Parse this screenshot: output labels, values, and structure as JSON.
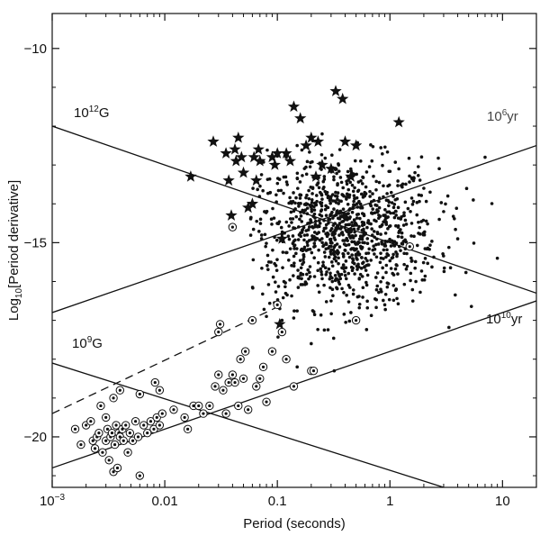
{
  "chart_data": {
    "type": "scatter",
    "x_scale": "log",
    "xlim": [
      0.001,
      20
    ],
    "ylim": [
      -21.3,
      -9.1
    ],
    "xlabel": "Period (seconds)",
    "ylabel_parts": {
      "pre": "Log",
      "sub": "10",
      "post": "[Period derivative]"
    },
    "x_ticks": [
      {
        "value": 0.001,
        "base": "10",
        "exp": "−3"
      },
      {
        "value": 0.01,
        "text": "0.01"
      },
      {
        "value": 0.1,
        "text": "0.1"
      },
      {
        "value": 1,
        "text": "1"
      },
      {
        "value": 10,
        "text": "10"
      }
    ],
    "y_ticks": [
      {
        "value": -10,
        "text": "−10"
      },
      {
        "value": -15,
        "text": "−15"
      },
      {
        "value": -20,
        "text": "−20"
      }
    ],
    "reference_lines": [
      {
        "id": "b12",
        "base": "10",
        "exp": "12",
        "unit": "G",
        "style": "solid",
        "points": [
          [
            0.001,
            -12.0
          ],
          [
            20,
            -16.3
          ]
        ]
      },
      {
        "id": "b9",
        "base": "10",
        "exp": "9",
        "unit": "G",
        "style": "solid",
        "points": [
          [
            0.001,
            -18.1
          ],
          [
            3,
            -21.3
          ]
        ]
      },
      {
        "id": "t6",
        "base": "10",
        "exp": "6",
        "unit": "yr",
        "style": "solid",
        "points": [
          [
            0.001,
            -16.8
          ],
          [
            20,
            -12.5
          ]
        ]
      },
      {
        "id": "t10",
        "base": "10",
        "exp": "10",
        "unit": "yr",
        "style": "solid",
        "points": [
          [
            0.001,
            -20.8
          ],
          [
            20,
            -16.5
          ]
        ]
      },
      {
        "id": "spinup",
        "style": "dashed",
        "points": [
          [
            0.001,
            -19.4
          ],
          [
            0.11,
            -16.6
          ]
        ]
      }
    ],
    "series": [
      {
        "kind": "normal pulsars",
        "marker": "dot",
        "cluster": {
          "count": 1100,
          "center_logx": -0.42,
          "spread_logx": 0.42,
          "center_y": -14.75,
          "spread_y": 0.95,
          "logx_min": -1.25,
          "logx_max": 1.2,
          "y_min": -17.5,
          "y_max": -12.3
        },
        "points": [
          [
            0.12,
            -12.8
          ],
          [
            0.15,
            -12.5
          ],
          [
            0.25,
            -12.2
          ],
          [
            0.35,
            -13.0
          ],
          [
            0.55,
            -12.9
          ],
          [
            1.2,
            -13.1
          ],
          [
            2.0,
            -13.6
          ],
          [
            3.0,
            -14.2
          ],
          [
            4.0,
            -14.9
          ],
          [
            5.5,
            -13.9
          ],
          [
            7.0,
            -12.8
          ],
          [
            9.0,
            -15.4
          ],
          [
            0.3,
            -16.5
          ],
          [
            0.45,
            -16.8
          ],
          [
            0.9,
            -16.6
          ],
          [
            1.7,
            -16.0
          ],
          [
            0.09,
            -17.8
          ],
          [
            0.2,
            -17.6
          ],
          [
            0.32,
            -18.3
          ],
          [
            0.15,
            -18.2
          ],
          [
            0.11,
            -17.0
          ],
          [
            0.08,
            -16.9
          ]
        ]
      },
      {
        "kind": "binary / recycled pulsars",
        "marker": "circled-dot",
        "points": [
          [
            0.0016,
            -19.8
          ],
          [
            0.0018,
            -20.2
          ],
          [
            0.002,
            -19.7
          ],
          [
            0.0022,
            -19.6
          ],
          [
            0.0023,
            -20.1
          ],
          [
            0.0024,
            -20.3
          ],
          [
            0.0025,
            -20.0
          ],
          [
            0.0026,
            -19.9
          ],
          [
            0.0027,
            -19.2
          ],
          [
            0.0028,
            -20.4
          ],
          [
            0.003,
            -19.5
          ],
          [
            0.003,
            -20.1
          ],
          [
            0.0031,
            -19.8
          ],
          [
            0.0032,
            -20.6
          ],
          [
            0.0033,
            -20.0
          ],
          [
            0.0034,
            -19.9
          ],
          [
            0.0035,
            -20.9
          ],
          [
            0.0036,
            -20.2
          ],
          [
            0.0037,
            -19.7
          ],
          [
            0.0038,
            -20.8
          ],
          [
            0.0039,
            -19.9
          ],
          [
            0.004,
            -20.0
          ],
          [
            0.0042,
            -19.8
          ],
          [
            0.0043,
            -20.1
          ],
          [
            0.0045,
            -19.7
          ],
          [
            0.0047,
            -20.4
          ],
          [
            0.0049,
            -19.9
          ],
          [
            0.0052,
            -20.1
          ],
          [
            0.0055,
            -19.6
          ],
          [
            0.0058,
            -20.0
          ],
          [
            0.006,
            -21.0
          ],
          [
            0.0065,
            -19.7
          ],
          [
            0.007,
            -19.9
          ],
          [
            0.0075,
            -19.6
          ],
          [
            0.008,
            -19.8
          ],
          [
            0.0085,
            -19.5
          ],
          [
            0.009,
            -19.7
          ],
          [
            0.0095,
            -19.4
          ],
          [
            0.0035,
            -19.0
          ],
          [
            0.004,
            -18.8
          ],
          [
            0.006,
            -18.9
          ],
          [
            0.0082,
            -18.6
          ],
          [
            0.009,
            -18.8
          ],
          [
            0.012,
            -19.3
          ],
          [
            0.015,
            -19.5
          ],
          [
            0.016,
            -19.8
          ],
          [
            0.018,
            -19.2
          ],
          [
            0.02,
            -19.2
          ],
          [
            0.022,
            -19.4
          ],
          [
            0.025,
            -19.2
          ],
          [
            0.028,
            -18.7
          ],
          [
            0.03,
            -17.3
          ],
          [
            0.03,
            -18.4
          ],
          [
            0.031,
            -17.1
          ],
          [
            0.033,
            -18.8
          ],
          [
            0.035,
            -19.4
          ],
          [
            0.037,
            -18.6
          ],
          [
            0.04,
            -18.4
          ],
          [
            0.042,
            -18.6
          ],
          [
            0.045,
            -19.2
          ],
          [
            0.047,
            -18.0
          ],
          [
            0.05,
            -18.5
          ],
          [
            0.052,
            -17.8
          ],
          [
            0.055,
            -19.3
          ],
          [
            0.06,
            -17.0
          ],
          [
            0.065,
            -18.7
          ],
          [
            0.07,
            -18.5
          ],
          [
            0.075,
            -18.2
          ],
          [
            0.08,
            -19.1
          ],
          [
            0.09,
            -17.8
          ],
          [
            0.1,
            -16.6
          ],
          [
            0.11,
            -17.3
          ],
          [
            0.12,
            -18.0
          ],
          [
            0.14,
            -18.7
          ],
          [
            0.2,
            -18.3
          ],
          [
            0.21,
            -18.3
          ],
          [
            0.5,
            -17.0
          ],
          [
            0.04,
            -14.6
          ],
          [
            1.5,
            -15.1
          ]
        ]
      },
      {
        "kind": "special pulsars",
        "marker": "star",
        "points": [
          [
            0.017,
            -13.3
          ],
          [
            0.027,
            -12.4
          ],
          [
            0.035,
            -12.7
          ],
          [
            0.037,
            -13.4
          ],
          [
            0.039,
            -14.3
          ],
          [
            0.042,
            -12.6
          ],
          [
            0.043,
            -12.9
          ],
          [
            0.045,
            -12.3
          ],
          [
            0.048,
            -12.8
          ],
          [
            0.05,
            -13.2
          ],
          [
            0.055,
            -14.1
          ],
          [
            0.06,
            -14.0
          ],
          [
            0.062,
            -12.8
          ],
          [
            0.065,
            -13.4
          ],
          [
            0.068,
            -12.6
          ],
          [
            0.07,
            -12.9
          ],
          [
            0.09,
            -12.8
          ],
          [
            0.095,
            -13.0
          ],
          [
            0.1,
            -12.7
          ],
          [
            0.105,
            -17.1
          ],
          [
            0.11,
            -14.9
          ],
          [
            0.12,
            -12.7
          ],
          [
            0.13,
            -12.9
          ],
          [
            0.14,
            -11.5
          ],
          [
            0.16,
            -11.8
          ],
          [
            0.18,
            -12.5
          ],
          [
            0.2,
            -12.3
          ],
          [
            0.22,
            -13.3
          ],
          [
            0.23,
            -12.4
          ],
          [
            0.25,
            -13.0
          ],
          [
            0.3,
            -13.1
          ],
          [
            0.33,
            -11.1
          ],
          [
            0.38,
            -11.3
          ],
          [
            0.4,
            -12.4
          ],
          [
            0.45,
            -13.3
          ],
          [
            0.5,
            -12.5
          ],
          [
            1.2,
            -11.9
          ]
        ]
      }
    ]
  }
}
